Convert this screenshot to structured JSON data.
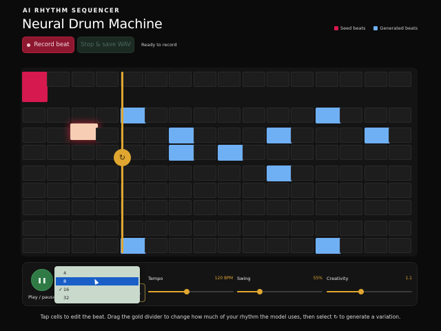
{
  "header": {
    "eyebrow": "AI RHYTHM SEQUENCER",
    "title": "Neural Drum Machine"
  },
  "legend": {
    "seed_label": "Seed beats",
    "generated_label": "Generated beats",
    "seed_color": "#d6194f",
    "generated_color": "#6fb0f5"
  },
  "toolbar": {
    "record_label": "Record beat",
    "stop_label": "Stop & save WAV",
    "status": "Ready to record"
  },
  "grid": {
    "columns": 16,
    "rows": 9,
    "seed_cells": [
      [
        0,
        0
      ]
    ],
    "selected_cells": [
      [
        2,
        2
      ]
    ],
    "generated_cells": [
      [
        1,
        4
      ],
      [
        1,
        12
      ],
      [
        2,
        6
      ],
      [
        2,
        10
      ],
      [
        2,
        14
      ],
      [
        3,
        6
      ],
      [
        3,
        8
      ],
      [
        4,
        10
      ],
      [
        8,
        4
      ],
      [
        8,
        12
      ]
    ],
    "divider_icon": "refresh-icon"
  },
  "transport": {
    "play_label": "Play / pause",
    "play_icon": "pause-icon",
    "length_options": [
      "4",
      "8",
      "16",
      "32"
    ],
    "length_selected": "16",
    "length_highlighted": "8"
  },
  "sliders": {
    "tempo": {
      "label": "Tempo",
      "value": "120 BPM",
      "fraction": 0.45
    },
    "swing": {
      "label": "Swing",
      "value": "55%",
      "fraction": 0.27
    },
    "creativity": {
      "label": "Creativity",
      "value": "1.1",
      "fraction": 0.4
    }
  },
  "footer": {
    "instructions": "Tap cells to edit the beat. Drag the gold divider to change how much of your rhythm the model uses, then select ↻ to generate a variation."
  }
}
